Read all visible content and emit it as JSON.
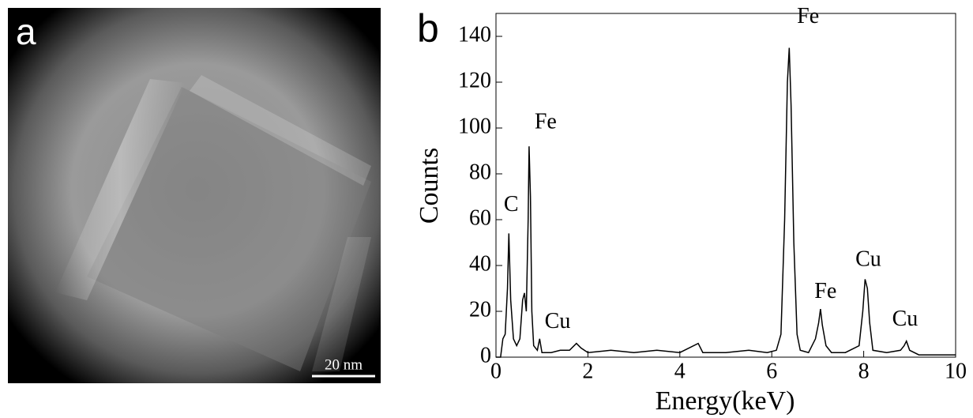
{
  "panel_a": {
    "label": "a",
    "scale_bar": "20 nm"
  },
  "chart_data": {
    "type": "line",
    "panel_label": "b",
    "x_label": "Energy(keV)",
    "y_label": "Counts",
    "color": "#000000",
    "x": [
      0,
      0.1,
      0.15,
      0.2,
      0.25,
      0.28,
      0.32,
      0.38,
      0.45,
      0.52,
      0.58,
      0.62,
      0.66,
      0.7,
      0.72,
      0.75,
      0.78,
      0.82,
      0.9,
      0.95,
      1.0,
      1.2,
      1.4,
      1.6,
      1.75,
      1.85,
      2.0,
      2.5,
      3.0,
      3.5,
      4.0,
      4.4,
      4.5,
      5.0,
      5.5,
      5.9,
      6.1,
      6.2,
      6.28,
      6.34,
      6.38,
      6.42,
      6.48,
      6.55,
      6.62,
      6.8,
      6.95,
      7.02,
      7.06,
      7.1,
      7.18,
      7.3,
      7.6,
      7.9,
      7.98,
      8.03,
      8.08,
      8.13,
      8.2,
      8.5,
      8.8,
      8.88,
      8.93,
      9.0,
      9.2,
      9.6,
      10
    ],
    "values": [
      0,
      0,
      8,
      10,
      30,
      54,
      25,
      8,
      5,
      8,
      25,
      28,
      20,
      60,
      92,
      70,
      20,
      5,
      3,
      8,
      2,
      2,
      3,
      3,
      6,
      4,
      2,
      3,
      2,
      3,
      2,
      6,
      2,
      2,
      3,
      2,
      3,
      10,
      60,
      120,
      135,
      110,
      50,
      10,
      3,
      2,
      8,
      15,
      21,
      14,
      5,
      2,
      2,
      5,
      20,
      34,
      30,
      15,
      3,
      2,
      3,
      5,
      7,
      3,
      1,
      1,
      1
    ],
    "xlim": [
      0,
      10
    ],
    "xticks": [
      0,
      2,
      4,
      6,
      8,
      10
    ],
    "ylim": [
      0,
      150
    ],
    "yticks": [
      0,
      20,
      40,
      60,
      80,
      100,
      120,
      140
    ],
    "annotations": [
      {
        "text": "C",
        "x": 0.33,
        "y": 66
      },
      {
        "text": "Fe",
        "x": 1.08,
        "y": 102
      },
      {
        "text": "Cu",
        "x": 1.34,
        "y": 15
      },
      {
        "text": "Fe",
        "x": 6.79,
        "y": 148
      },
      {
        "text": "Fe",
        "x": 7.17,
        "y": 28
      },
      {
        "text": "Cu",
        "x": 8.1,
        "y": 42
      },
      {
        "text": "Cu",
        "x": 8.9,
        "y": 16
      }
    ]
  }
}
